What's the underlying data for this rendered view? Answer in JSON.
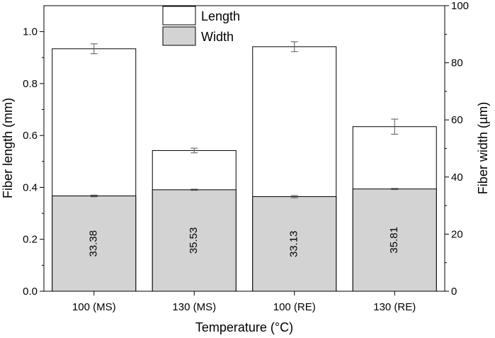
{
  "chart_data": {
    "type": "bar",
    "title": "",
    "xlabel": "Temperature (°C)",
    "ylabel_left": "Fiber length (mm)",
    "ylabel_right": "Fiber width (µm)",
    "categories": [
      "100 (MS)",
      "130 (MS)",
      "100 (RE)",
      "130 (RE)"
    ],
    "ylim_left": [
      0,
      1.1
    ],
    "ylim_right": [
      0,
      100
    ],
    "left_ticks": [
      "0.0",
      "0.2",
      "0.4",
      "0.6",
      "0.8",
      "1.0"
    ],
    "right_ticks": [
      "0",
      "20",
      "40",
      "60",
      "80",
      "100"
    ],
    "legend_position": "top-center",
    "grid": false,
    "series": [
      {
        "name": "Length",
        "axis": "left",
        "values": [
          0.934,
          0.542,
          0.942,
          0.634
        ],
        "errors": [
          0.019,
          0.009,
          0.019,
          0.029
        ],
        "fill": "#ffffff"
      },
      {
        "name": "Width",
        "axis": "right",
        "values": [
          33.38,
          35.53,
          33.13,
          35.81
        ],
        "errors": [
          0.3,
          0.2,
          0.4,
          0.2
        ],
        "labels": [
          "33.38",
          "35.53",
          "33.13",
          "35.81"
        ],
        "fill": "#d3d3d3"
      }
    ]
  }
}
